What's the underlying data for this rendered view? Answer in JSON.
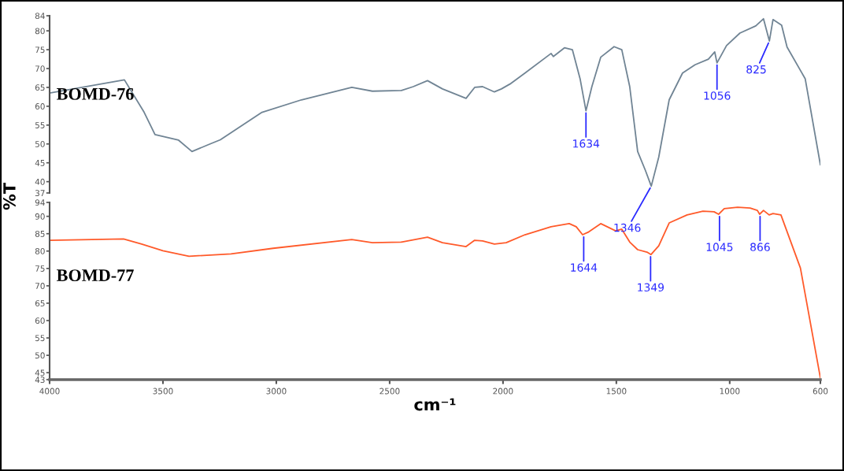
{
  "chart_data": [
    {
      "type": "line",
      "ylabel": "%T",
      "xlim": [
        4000,
        600
      ],
      "ylim": [
        37,
        84
      ],
      "yticks": [
        37,
        40,
        45,
        50,
        55,
        60,
        65,
        70,
        75,
        80,
        84
      ],
      "tick_labels": "y",
      "grid": false,
      "legend": false,
      "series": [
        {
          "name": "BOMD-76",
          "color": "#708494",
          "x": [
            4000,
            3670,
            3583,
            3535,
            3431,
            3372,
            3292,
            3247,
            3063,
            2889,
            2667,
            2576,
            2448,
            2396,
            2333,
            2267,
            2163,
            2125,
            2090,
            2038,
            2007,
            1969,
            1903,
            1788,
            1778,
            1729,
            1694,
            1660,
            1634,
            1608,
            1569,
            1510,
            1476,
            1441,
            1406,
            1372,
            1346,
            1313,
            1267,
            1208,
            1153,
            1094,
            1066,
            1056,
            1014,
            955,
            885,
            851,
            825,
            809,
            771,
            747,
            667,
            600
          ],
          "values": [
            63.5,
            67.0,
            58.4,
            52.5,
            51.0,
            48.0,
            50.0,
            51.1,
            58.4,
            61.7,
            65.0,
            64.0,
            64.2,
            65.2,
            66.8,
            64.6,
            62.1,
            65.0,
            65.2,
            63.8,
            64.6,
            65.9,
            68.8,
            74.0,
            73.2,
            75.5,
            75.0,
            67.3,
            58.8,
            65.2,
            73.0,
            75.8,
            75.0,
            65.2,
            48.0,
            43.0,
            38.8,
            46.5,
            61.7,
            68.8,
            71.0,
            72.5,
            74.4,
            71.5,
            76.1,
            79.4,
            81.3,
            83.2,
            77.3,
            83.0,
            81.5,
            75.7,
            67.3,
            44.5
          ]
        }
      ],
      "annotations": [
        {
          "text": "1634",
          "x": 1634,
          "y": 58.8
        },
        {
          "text": "1346",
          "x": 1346,
          "y": 38.8
        },
        {
          "text": "1056",
          "x": 1056,
          "y": 71.5
        },
        {
          "text": "825",
          "x": 825,
          "y": 77.3
        }
      ]
    },
    {
      "type": "line",
      "xlabel": "cm⁻¹",
      "xlim": [
        4000,
        600
      ],
      "xticks": [
        4000,
        3500,
        3000,
        2500,
        2000,
        1500,
        1000,
        600
      ],
      "ylim": [
        43,
        94
      ],
      "yticks": [
        43,
        45,
        50,
        55,
        60,
        65,
        70,
        75,
        80,
        85,
        90,
        94
      ],
      "grid": false,
      "legend": false,
      "series": [
        {
          "name": "BOMD-77",
          "color": "#ff5a2a",
          "x": [
            4000,
            3674,
            3594,
            3500,
            3385,
            3200,
            3014,
            2667,
            2576,
            2448,
            2333,
            2267,
            2163,
            2125,
            2090,
            2038,
            1986,
            1903,
            1788,
            1708,
            1677,
            1649,
            1625,
            1569,
            1503,
            1476,
            1441,
            1406,
            1365,
            1347,
            1313,
            1267,
            1188,
            1118,
            1069,
            1049,
            1024,
            965,
            910,
            878,
            868,
            851,
            826,
            809,
            774,
            688,
            600
          ],
          "values": [
            83.1,
            83.5,
            82.0,
            80.1,
            78.5,
            79.2,
            80.8,
            83.3,
            82.4,
            82.6,
            84.0,
            82.4,
            81.3,
            83.1,
            82.9,
            82.0,
            82.4,
            84.7,
            87.0,
            87.9,
            87.0,
            84.7,
            85.4,
            87.9,
            85.8,
            86.3,
            82.6,
            80.4,
            79.7,
            79.0,
            81.5,
            88.1,
            90.4,
            91.5,
            91.3,
            90.6,
            92.2,
            92.6,
            92.4,
            91.7,
            90.6,
            91.7,
            90.4,
            90.8,
            90.4,
            75.1,
            43.5
          ]
        }
      ],
      "annotations": [
        {
          "text": "1644",
          "x": 1644,
          "y": 84.7
        },
        {
          "text": "1349",
          "x": 1349,
          "y": 79.0
        },
        {
          "text": "1045",
          "x": 1045,
          "y": 90.6
        },
        {
          "text": "866",
          "x": 866,
          "y": 90.6
        }
      ]
    }
  ]
}
